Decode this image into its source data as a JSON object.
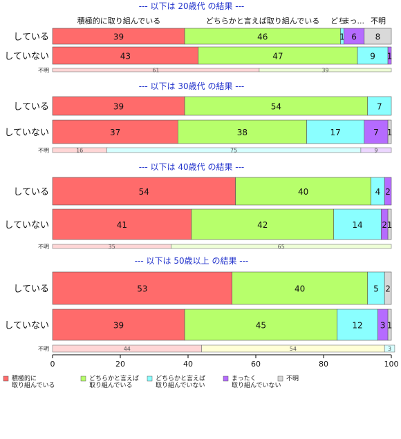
{
  "chart_data": {
    "type": "bar",
    "orientation": "horizontal",
    "stacked": true,
    "xlim": [
      0,
      100
    ],
    "x_ticks": [
      0,
      20,
      40,
      60,
      80,
      100
    ],
    "colors": {
      "積極的に取り組んでいる": "#ff6b6b",
      "どちらかと言えば取り組んでいる": "#b7ff6b",
      "どちらかと言えば取り組んでいない": "#8affff",
      "まったく取り組んでいない": "#b56bff",
      "不明": "#d9d9d9"
    },
    "series_labels_top": [
      "積極的に取り組んでいる",
      "どちらかと言えば取り組んでいる",
      "どち",
      "まっ...",
      "不明"
    ],
    "legend": [
      {
        "key": "積極的に取り組んでいる",
        "lines": [
          "積極的に",
          "取り組んでいる"
        ]
      },
      {
        "key": "どちらかと言えば取り組んでいる",
        "lines": [
          "どちらかと言えば",
          "取り組んでいる"
        ]
      },
      {
        "key": "どちらかと言えば取り組んでいない",
        "lines": [
          "どちらかと言えば",
          "取り組んでいない"
        ]
      },
      {
        "key": "まったく取り組んでいない",
        "lines": [
          "まったく",
          "取り組んでいない"
        ]
      },
      {
        "key": "不明",
        "lines": [
          "不明"
        ]
      }
    ],
    "panels": [
      {
        "title": "--- 以下は 20歳代 の結果 ---",
        "rows": [
          {
            "label": "している",
            "values": [
              39,
              46,
              1,
              6,
              8
            ]
          },
          {
            "label": "していない",
            "values": [
              43,
              47,
              9,
              1,
              0
            ]
          }
        ],
        "unknown": {
          "label": "不明",
          "values": [
            61,
            39
          ],
          "colors": [
            "#ffd6d6",
            "#eeffd6"
          ]
        }
      },
      {
        "title": "--- 以下は 30歳代 の結果 ---",
        "rows": [
          {
            "label": "している",
            "values": [
              39,
              54,
              7,
              0,
              0
            ]
          },
          {
            "label": "していない",
            "values": [
              37,
              38,
              17,
              7,
              1
            ]
          }
        ],
        "unknown": {
          "label": "不明",
          "values": [
            16,
            0,
            75,
            9
          ],
          "colors": [
            "#ffd6d6",
            "#eeffd6",
            "#d6ffff",
            "#ecd6ff"
          ]
        }
      },
      {
        "title": "--- 以下は 40歳代 の結果 ---",
        "rows": [
          {
            "label": "している",
            "values": [
              54,
              40,
              4,
              2,
              0
            ]
          },
          {
            "label": "していない",
            "values": [
              41,
              42,
              14,
              2,
              1
            ]
          }
        ],
        "unknown": {
          "label": "不明",
          "values": [
            35,
            65
          ],
          "colors": [
            "#ffd6d6",
            "#eeffd6"
          ]
        }
      },
      {
        "title": "--- 以下は 50歳以上 の結果 ---",
        "rows": [
          {
            "label": "している",
            "values": [
              53,
              40,
              5,
              0,
              2
            ]
          },
          {
            "label": "していない",
            "values": [
              39,
              45,
              12,
              3,
              1
            ]
          }
        ],
        "unknown": {
          "label": "不明",
          "values": [
            44,
            54,
            3
          ],
          "colors": [
            "#ffd6d6",
            "#ffffd6",
            "#d6ffff"
          ]
        }
      }
    ]
  }
}
